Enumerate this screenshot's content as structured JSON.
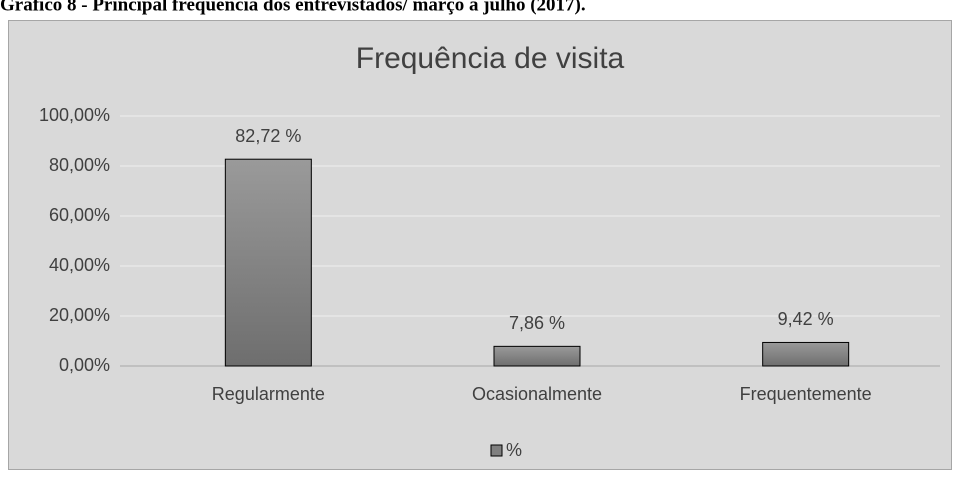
{
  "caption": "Gráfico 8 - Principal frequência dos entrevistados/ março a julho (2017).",
  "chart_data": {
    "type": "bar",
    "title": "Frequência de visita",
    "categories": [
      "Regularmente",
      "Ocasionalmente",
      "Frequentemente"
    ],
    "series": [
      {
        "name": "%",
        "color": "#808080",
        "values": [
          82.72,
          7.86,
          9.42
        ],
        "value_labels": [
          "82,72 %",
          "7,86 %",
          "9,42 %"
        ]
      }
    ],
    "ylim": [
      0,
      100
    ],
    "yticks": [
      {
        "value": 0,
        "label": "0,00%"
      },
      {
        "value": 20,
        "label": "20,00%"
      },
      {
        "value": 40,
        "label": "40,00%"
      },
      {
        "value": 60,
        "label": "60,00%"
      },
      {
        "value": 80,
        "label": "80,00%"
      },
      {
        "value": 100,
        "label": "100,00%"
      }
    ],
    "grid": true,
    "legend": "bottom"
  }
}
